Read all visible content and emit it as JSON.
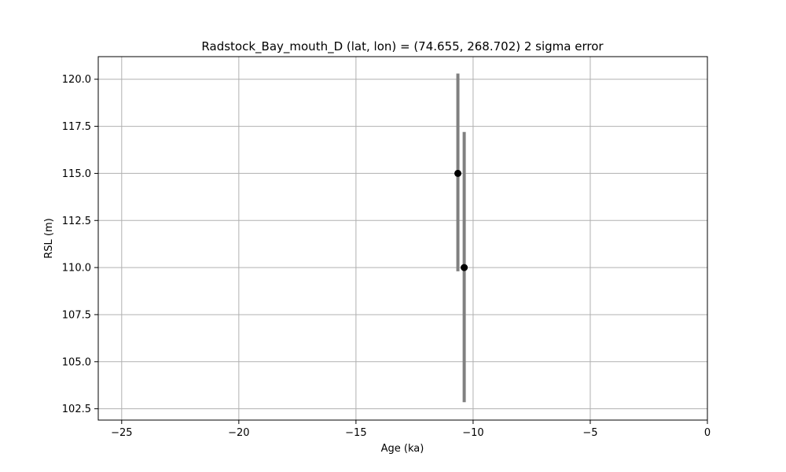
{
  "chart_data": {
    "type": "scatter",
    "title": "Radstock_Bay_mouth_D (lat, lon) = (74.655, 268.702)  2 sigma error",
    "xlabel": "Age (ka)",
    "ylabel": "RSL (m)",
    "xlim": [
      -26,
      0
    ],
    "ylim": [
      101.9,
      121.2
    ],
    "xticks": [
      -25,
      -20,
      -15,
      -10,
      -5,
      0
    ],
    "xtick_labels": [
      "−25",
      "−20",
      "−15",
      "−10",
      "−5",
      "0"
    ],
    "yticks": [
      102.5,
      105.0,
      107.5,
      110.0,
      112.5,
      115.0,
      117.5,
      120.0
    ],
    "ytick_labels": [
      "102.5",
      "105.0",
      "107.5",
      "110.0",
      "112.5",
      "115.0",
      "117.5",
      "120.0"
    ],
    "grid": true,
    "points": [
      {
        "x": -10.65,
        "y": 115.0,
        "err_low": 109.8,
        "err_high": 120.3
      },
      {
        "x": -10.38,
        "y": 110.0,
        "err_low": 102.85,
        "err_high": 117.2
      }
    ],
    "colors": {
      "errorbar": "#808080",
      "marker": "#000000",
      "grid": "#b0b0b0"
    }
  }
}
